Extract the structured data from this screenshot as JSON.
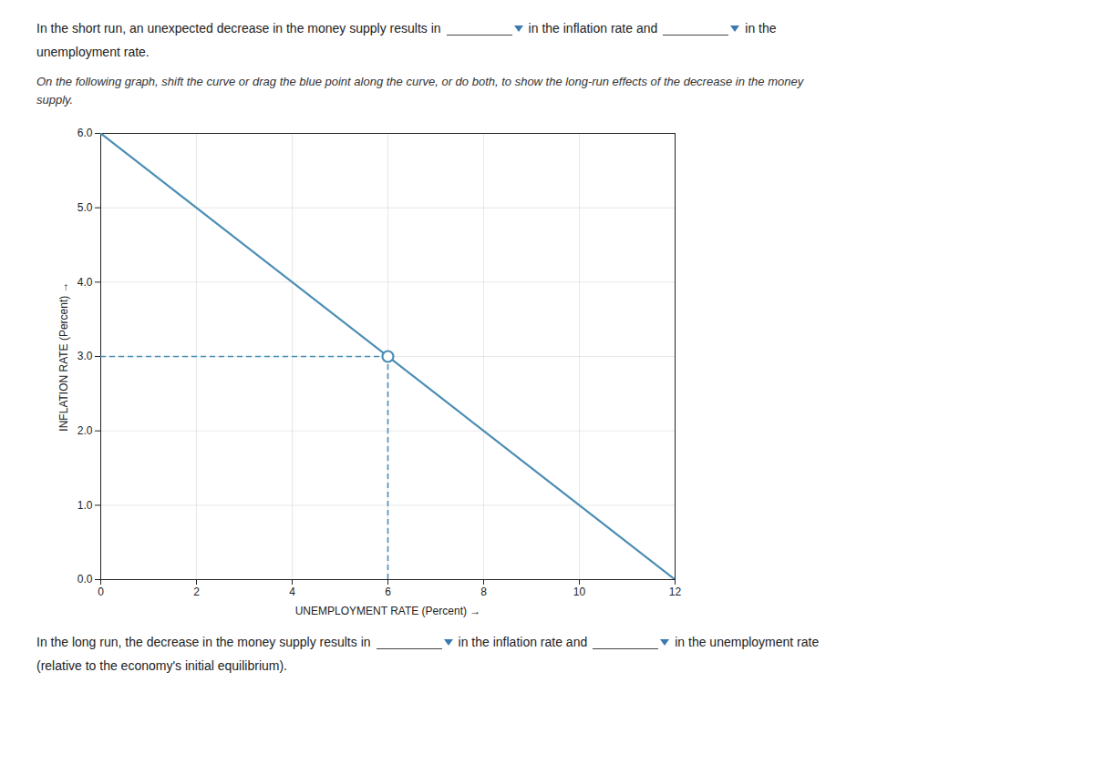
{
  "chart_data": {
    "type": "line",
    "x": [
      0,
      12
    ],
    "values": [
      6,
      0
    ],
    "color": "#4a8db5",
    "point": {
      "x": 6,
      "y": 3,
      "color": "#4a8db5",
      "marker": "circle"
    },
    "reference_lines": {
      "x": 6,
      "y": 3,
      "color": "#4a8db5",
      "line_style": "dashed"
    },
    "xlabel": "UNEMPLOYMENT RATE (Percent)",
    "ylabel": "INFLATION RATE (Percent)",
    "xlim": [
      0,
      12
    ],
    "ylim": [
      0,
      6
    ],
    "xticks": [
      0,
      2,
      4,
      6,
      8,
      10,
      12
    ],
    "yticks": [
      0,
      1,
      2,
      3,
      4,
      5,
      6
    ],
    "grid": true,
    "annotations": {
      "above": [
        [
          "In the short run, an unexpected decrease in the money supply results in",
          "in the inflation rate and",
          "in the"
        ],
        [
          "unemployment rate."
        ]
      ],
      "instructions": [
        "On the following graph, shift the curve or drag the blue point along the curve, or do both, to show the long-run effects of the decrease in the money",
        "supply."
      ],
      "below": [
        [
          "In the long run, the decrease in the money supply results in",
          "in the inflation rate and",
          "in the unemployment rate"
        ],
        [
          "(relative to the economy's initial equilibrium)."
        ]
      ]
    }
  }
}
